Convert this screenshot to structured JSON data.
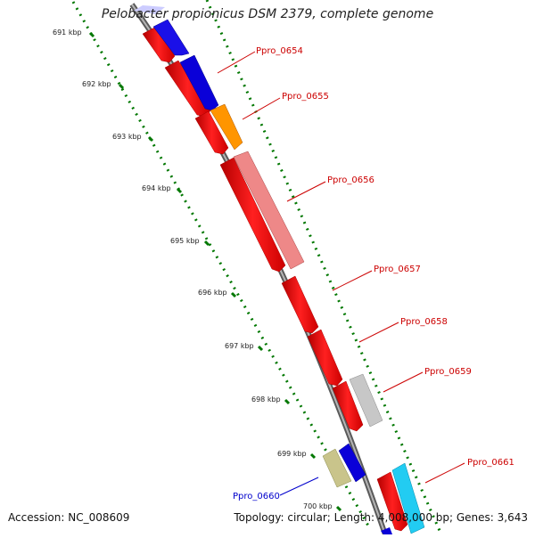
{
  "title": "Pelobacter propionicus DSM 2379, complete genome",
  "accession_text": "Accession: NC_008609",
  "summary_text": "Topology: circular; Length: 4,008,000 bp; Genes: 3,643",
  "colors": {
    "backbone": "#8c8c8c",
    "tick_green": "#007700",
    "forward_label": "#cc0000",
    "reverse_label": "#0000cc"
  },
  "kbp_ticks": [
    "691 kbp",
    "692 kbp",
    "693 kbp",
    "694 kbp",
    "695 kbp",
    "696 kbp",
    "697 kbp",
    "698 kbp",
    "699 kbp",
    "700 kbp"
  ],
  "gene_labels": [
    {
      "text": "Ppro_0654",
      "strand": "forward"
    },
    {
      "text": "Ppro_0655",
      "strand": "forward"
    },
    {
      "text": "Ppro_0656",
      "strand": "forward"
    },
    {
      "text": "Ppro_0657",
      "strand": "forward"
    },
    {
      "text": "Ppro_0658",
      "strand": "forward"
    },
    {
      "text": "Ppro_0659",
      "strand": "forward"
    },
    {
      "text": "Ppro_0660",
      "strand": "reverse"
    },
    {
      "text": "Ppro_0661",
      "strand": "forward"
    }
  ],
  "features": [
    {
      "name": "cds",
      "color": "#e8001a"
    },
    {
      "name": "gene",
      "color": "#0a00d8"
    },
    {
      "name": "gene",
      "color": "#ff9500"
    },
    {
      "name": "gene",
      "color": "#ee8888"
    },
    {
      "name": "gene",
      "color": "#c7c7c7"
    },
    {
      "name": "gene",
      "color": "#c9c48b"
    },
    {
      "name": "gene",
      "color": "#22ccf2"
    },
    {
      "name": "gene",
      "color": "#ccccff"
    }
  ]
}
